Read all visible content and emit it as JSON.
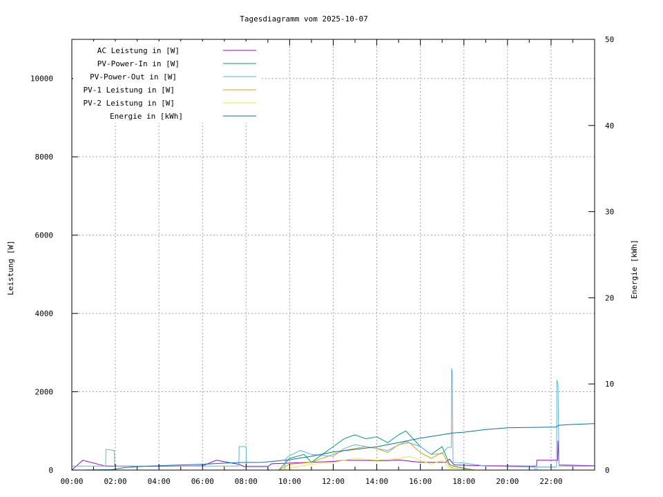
{
  "chart_data": {
    "type": "line",
    "title": "Tagesdiagramm vom 2025-10-07",
    "xlabel": "",
    "ylabel": "Leistung [W]",
    "y2label": "Energie [kWh]",
    "xlim": [
      "00:00",
      "24:00"
    ],
    "ylim": [
      0,
      11000
    ],
    "y2lim": [
      0,
      50
    ],
    "x_ticks": [
      "00:00",
      "02:00",
      "04:00",
      "06:00",
      "08:00",
      "10:00",
      "12:00",
      "14:00",
      "16:00",
      "18:00",
      "20:00",
      "22:00"
    ],
    "y_ticks": [
      0,
      2000,
      4000,
      6000,
      8000,
      10000
    ],
    "y2_ticks": [
      0,
      10,
      20,
      30,
      40,
      50
    ],
    "grid": true,
    "legend_placement": "top-left",
    "series": [
      {
        "name": "AC Leistung in [W]",
        "axis": "left",
        "color": "#9400d3",
        "points": [
          [
            "00:00",
            0
          ],
          [
            "00:30",
            250
          ],
          [
            "01:33",
            100
          ],
          [
            "02:00",
            100
          ],
          [
            "04:00",
            95
          ],
          [
            "06:00",
            110
          ],
          [
            "06:38",
            250
          ],
          [
            "07:39",
            150
          ],
          [
            "07:55",
            90
          ],
          [
            "09:00",
            90
          ],
          [
            "09:10",
            160
          ],
          [
            "12:00",
            220
          ],
          [
            "12:30",
            250
          ],
          [
            "14:30",
            240
          ],
          [
            "15:00",
            260
          ],
          [
            "16:00",
            200
          ],
          [
            "17:10",
            200
          ],
          [
            "17:20",
            280
          ],
          [
            "17:33",
            130
          ],
          [
            "19:00",
            110
          ],
          [
            "21:20",
            100
          ],
          [
            "21:21",
            250
          ],
          [
            "22:18",
            250
          ],
          [
            "22:19",
            750
          ],
          [
            "22:22",
            130
          ],
          [
            "24:00",
            110
          ]
        ]
      },
      {
        "name": "PV-Power-In in [W]",
        "axis": "left",
        "color": "#009e73",
        "points": [
          [
            "00:00",
            0
          ],
          [
            "09:30",
            0
          ],
          [
            "09:40",
            100
          ],
          [
            "10:00",
            300
          ],
          [
            "10:40",
            400
          ],
          [
            "11:00",
            200
          ],
          [
            "11:30",
            400
          ],
          [
            "12:00",
            600
          ],
          [
            "12:30",
            800
          ],
          [
            "13:00",
            900
          ],
          [
            "13:30",
            800
          ],
          [
            "14:00",
            850
          ],
          [
            "14:30",
            700
          ],
          [
            "15:00",
            900
          ],
          [
            "15:20",
            1000
          ],
          [
            "15:40",
            800
          ],
          [
            "16:00",
            600
          ],
          [
            "16:30",
            400
          ],
          [
            "17:00",
            600
          ],
          [
            "17:20",
            150
          ],
          [
            "17:30",
            100
          ],
          [
            "18:00",
            50
          ],
          [
            "18:30",
            0
          ],
          [
            "24:00",
            0
          ]
        ]
      },
      {
        "name": "PV-Power-Out in [W]",
        "axis": "left",
        "color": "#56b4e9",
        "points": [
          [
            "00:00",
            100
          ],
          [
            "01:33",
            100
          ],
          [
            "01:34",
            530
          ],
          [
            "01:57",
            500
          ],
          [
            "01:58",
            100
          ],
          [
            "07:40",
            100
          ],
          [
            "07:41",
            600
          ],
          [
            "08:00",
            600
          ],
          [
            "08:01",
            100
          ],
          [
            "09:00",
            100
          ],
          [
            "09:01",
            0
          ],
          [
            "09:45",
            0
          ],
          [
            "09:50",
            300
          ],
          [
            "10:00",
            370
          ],
          [
            "10:30",
            500
          ],
          [
            "11:00",
            400
          ],
          [
            "12:00",
            350
          ],
          [
            "12:30",
            550
          ],
          [
            "13:00",
            650
          ],
          [
            "14:00",
            550
          ],
          [
            "14:30",
            500
          ],
          [
            "15:20",
            730
          ],
          [
            "16:00",
            600
          ],
          [
            "16:30",
            400
          ],
          [
            "17:00",
            420
          ],
          [
            "17:15",
            580
          ],
          [
            "17:25",
            580
          ],
          [
            "17:26",
            2600
          ],
          [
            "17:28",
            2500
          ],
          [
            "17:30",
            200
          ],
          [
            "18:00",
            180
          ],
          [
            "19:00",
            100
          ],
          [
            "21:15",
            80
          ],
          [
            "21:16",
            0
          ],
          [
            "21:20",
            0
          ],
          [
            "21:21",
            80
          ],
          [
            "22:15",
            80
          ],
          [
            "22:16",
            2300
          ],
          [
            "22:19",
            2200
          ],
          [
            "22:22",
            100
          ],
          [
            "24:00",
            100
          ]
        ]
      },
      {
        "name": "PV-1 Leistung in [W]",
        "axis": "left",
        "color": "#e69f00",
        "points": [
          [
            "00:00",
            0
          ],
          [
            "09:30",
            0
          ],
          [
            "10:00",
            150
          ],
          [
            "11:00",
            200
          ],
          [
            "12:00",
            400
          ],
          [
            "12:30",
            500
          ],
          [
            "13:00",
            550
          ],
          [
            "13:30",
            600
          ],
          [
            "14:00",
            550
          ],
          [
            "14:30",
            450
          ],
          [
            "15:00",
            650
          ],
          [
            "15:30",
            700
          ],
          [
            "16:00",
            450
          ],
          [
            "16:30",
            300
          ],
          [
            "17:00",
            450
          ],
          [
            "17:20",
            100
          ],
          [
            "17:30",
            50
          ],
          [
            "18:30",
            0
          ],
          [
            "24:00",
            0
          ]
        ]
      },
      {
        "name": "PV-2 Leistung in [W]",
        "axis": "left",
        "color": "#f0e442",
        "points": [
          [
            "00:00",
            0
          ],
          [
            "09:30",
            0
          ],
          [
            "10:00",
            50
          ],
          [
            "11:00",
            150
          ],
          [
            "12:00",
            200
          ],
          [
            "13:00",
            300
          ],
          [
            "14:00",
            250
          ],
          [
            "15:00",
            300
          ],
          [
            "15:30",
            350
          ],
          [
            "16:00",
            250
          ],
          [
            "16:30",
            150
          ],
          [
            "17:00",
            250
          ],
          [
            "17:20",
            50
          ],
          [
            "18:30",
            0
          ],
          [
            "24:00",
            0
          ]
        ]
      },
      {
        "name": "Energie in [kWh]",
        "axis": "right",
        "color": "#0072b2",
        "points": [
          [
            "00:25",
            0
          ],
          [
            "01:50",
            0.05
          ],
          [
            "02:20",
            0.25
          ],
          [
            "03:00",
            0.4
          ],
          [
            "04:30",
            0.55
          ],
          [
            "05:55",
            0.67
          ],
          [
            "07:40",
            0.88
          ],
          [
            "08:45",
            0.9
          ],
          [
            "10:00",
            1.2
          ],
          [
            "11:00",
            1.6
          ],
          [
            "12:00",
            2.1
          ],
          [
            "13:00",
            2.4
          ],
          [
            "14:00",
            2.7
          ],
          [
            "15:00",
            3.2
          ],
          [
            "16:00",
            3.7
          ],
          [
            "17:00",
            4.1
          ],
          [
            "17:30",
            4.3
          ],
          [
            "18:00",
            4.4
          ],
          [
            "19:00",
            4.7
          ],
          [
            "20:00",
            4.9
          ],
          [
            "21:00",
            4.95
          ],
          [
            "22:15",
            5.0
          ],
          [
            "22:20",
            5.2
          ],
          [
            "23:00",
            5.3
          ],
          [
            "24:00",
            5.4
          ]
        ]
      }
    ]
  }
}
